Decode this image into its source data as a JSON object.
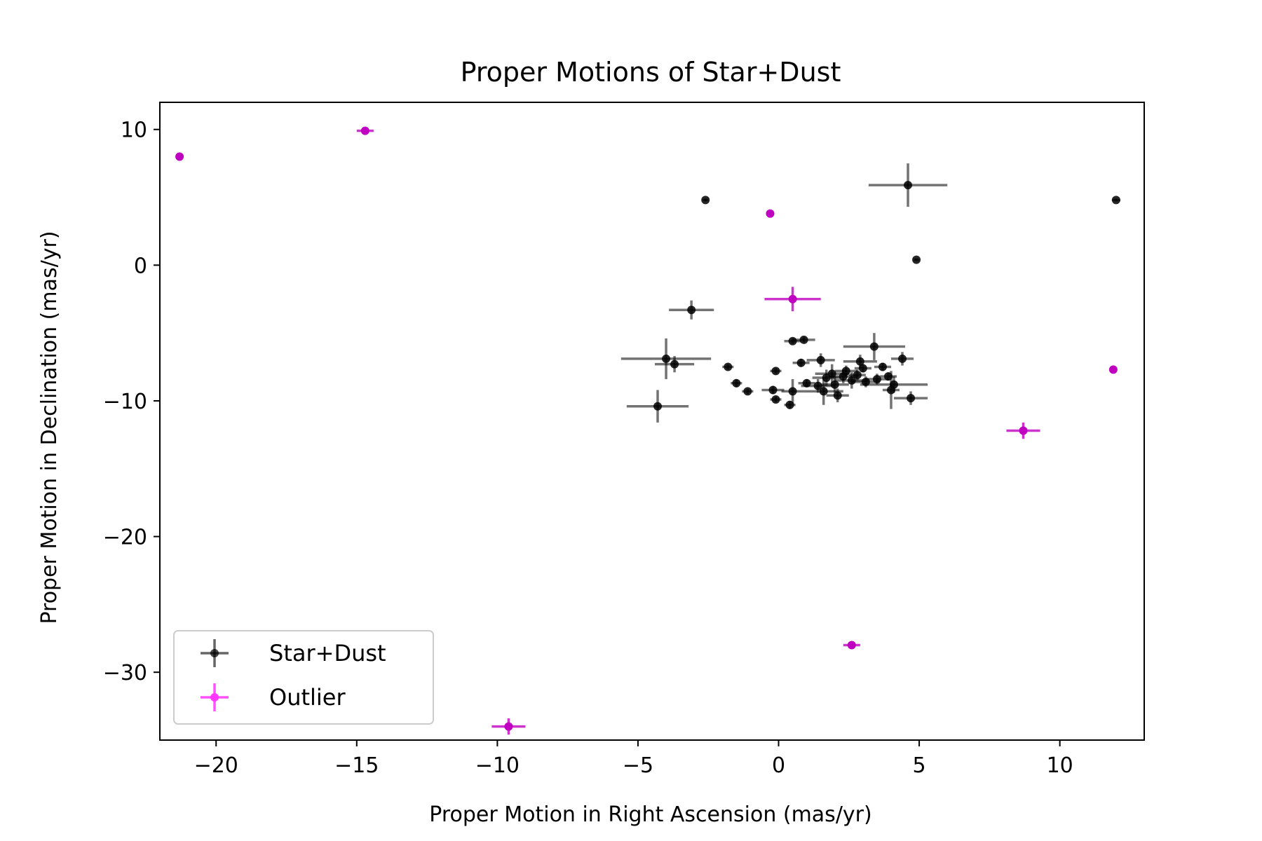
{
  "chart_data": {
    "type": "scatter",
    "title": "Proper Motions of Star+Dust",
    "xlabel": "Proper Motion in Right Ascension (mas/yr)",
    "ylabel": "Proper Motion in Declination (mas/yr)",
    "xlim": [
      -22,
      13
    ],
    "ylim": [
      -35,
      12
    ],
    "xticks": [
      -20,
      -15,
      -10,
      -5,
      0,
      5,
      10
    ],
    "yticks": [
      10,
      0,
      -10,
      -20,
      -30
    ],
    "xtick_labels": [
      "−20",
      "−15",
      "−10",
      "−5",
      "0",
      "5",
      "10"
    ],
    "ytick_labels": [
      "10",
      "0",
      "−10",
      "−20",
      "−30"
    ],
    "grid": false,
    "legend_position": "lower-left",
    "colors": {
      "Star+Dust": "#000000",
      "Outlier": "#c000c0",
      "Outlier-legend": "#ff33ff"
    },
    "series": [
      {
        "name": "Star+Dust",
        "points": [
          {
            "x": -2.6,
            "y": 4.8,
            "xerr": 0.1,
            "yerr": 0.1
          },
          {
            "x": 4.6,
            "y": 5.9,
            "xerr": 1.4,
            "yerr": 1.6
          },
          {
            "x": 12.0,
            "y": 4.8,
            "xerr": 0.15,
            "yerr": 0.1
          },
          {
            "x": 4.9,
            "y": 0.4,
            "xerr": 0.1,
            "yerr": 0.1
          },
          {
            "x": -3.1,
            "y": -3.3,
            "xerr": 0.8,
            "yerr": 0.7
          },
          {
            "x": -4.0,
            "y": -6.9,
            "xerr": 1.6,
            "yerr": 1.5
          },
          {
            "x": -3.7,
            "y": -7.3,
            "xerr": 0.7,
            "yerr": 0.6
          },
          {
            "x": -4.3,
            "y": -10.4,
            "xerr": 1.1,
            "yerr": 1.2
          },
          {
            "x": -1.8,
            "y": -7.5,
            "xerr": 0.2,
            "yerr": 0.2
          },
          {
            "x": -1.5,
            "y": -8.7,
            "xerr": 0.2,
            "yerr": 0.3
          },
          {
            "x": -1.1,
            "y": -9.3,
            "xerr": 0.2,
            "yerr": 0.2
          },
          {
            "x": -0.1,
            "y": -7.8,
            "xerr": 0.2,
            "yerr": 0.2
          },
          {
            "x": -0.2,
            "y": -9.2,
            "xerr": 0.4,
            "yerr": 0.3
          },
          {
            "x": -0.1,
            "y": -9.9,
            "xerr": 0.2,
            "yerr": 0.2
          },
          {
            "x": 0.4,
            "y": -10.3,
            "xerr": 0.2,
            "yerr": 0.3
          },
          {
            "x": 0.5,
            "y": -5.6,
            "xerr": 0.3,
            "yerr": 0.2
          },
          {
            "x": 0.9,
            "y": -5.5,
            "xerr": 0.4,
            "yerr": 0.2
          },
          {
            "x": 0.5,
            "y": -9.3,
            "xerr": 0.4,
            "yerr": 0.9
          },
          {
            "x": 0.8,
            "y": -7.2,
            "xerr": 0.3,
            "yerr": 0.3
          },
          {
            "x": 1.0,
            "y": -8.7,
            "xerr": 0.3,
            "yerr": 0.3
          },
          {
            "x": 1.5,
            "y": -7.0,
            "xerr": 0.5,
            "yerr": 0.5
          },
          {
            "x": 1.4,
            "y": -8.9,
            "xerr": 0.6,
            "yerr": 0.5
          },
          {
            "x": 1.7,
            "y": -8.3,
            "xerr": 0.5,
            "yerr": 0.6
          },
          {
            "x": 1.6,
            "y": -9.3,
            "xerr": 0.7,
            "yerr": 1.0
          },
          {
            "x": 1.9,
            "y": -8.0,
            "xerr": 0.6,
            "yerr": 0.7
          },
          {
            "x": 2.0,
            "y": -8.8,
            "xerr": 0.5,
            "yerr": 0.6
          },
          {
            "x": 2.1,
            "y": -9.6,
            "xerr": 0.4,
            "yerr": 0.5
          },
          {
            "x": 2.3,
            "y": -8.2,
            "xerr": 0.5,
            "yerr": 0.5
          },
          {
            "x": 2.4,
            "y": -7.8,
            "xerr": 0.4,
            "yerr": 0.4
          },
          {
            "x": 2.6,
            "y": -8.5,
            "xerr": 0.6,
            "yerr": 0.6
          },
          {
            "x": 2.8,
            "y": -8.1,
            "xerr": 0.3,
            "yerr": 0.4
          },
          {
            "x": 2.9,
            "y": -7.1,
            "xerr": 0.6,
            "yerr": 0.5
          },
          {
            "x": 3.0,
            "y": -7.6,
            "xerr": 0.3,
            "yerr": 0.3
          },
          {
            "x": 3.1,
            "y": -8.6,
            "xerr": 0.5,
            "yerr": 0.4
          },
          {
            "x": 3.4,
            "y": -6.0,
            "xerr": 1.1,
            "yerr": 1.0
          },
          {
            "x": 3.5,
            "y": -8.4,
            "xerr": 0.4,
            "yerr": 0.4
          },
          {
            "x": 3.7,
            "y": -7.5,
            "xerr": 0.3,
            "yerr": 0.3
          },
          {
            "x": 3.9,
            "y": -8.2,
            "xerr": 0.3,
            "yerr": 0.3
          },
          {
            "x": 4.1,
            "y": -8.8,
            "xerr": 1.2,
            "yerr": 0.6
          },
          {
            "x": 4.0,
            "y": -9.2,
            "xerr": 0.3,
            "yerr": 1.4
          },
          {
            "x": 4.4,
            "y": -6.9,
            "xerr": 0.4,
            "yerr": 0.5
          },
          {
            "x": 4.7,
            "y": -9.8,
            "xerr": 0.6,
            "yerr": 0.5
          }
        ]
      },
      {
        "name": "Outlier",
        "points": [
          {
            "x": -21.3,
            "y": 8.0,
            "xerr": 0.1,
            "yerr": 0.1
          },
          {
            "x": -14.7,
            "y": 9.9,
            "xerr": 0.3,
            "yerr": 0.2
          },
          {
            "x": -0.3,
            "y": 3.8,
            "xerr": 0.1,
            "yerr": 0.1
          },
          {
            "x": 0.5,
            "y": -2.5,
            "xerr": 1.0,
            "yerr": 0.9
          },
          {
            "x": 11.9,
            "y": -7.7,
            "xerr": 0.1,
            "yerr": 0.1
          },
          {
            "x": 8.7,
            "y": -12.2,
            "xerr": 0.6,
            "yerr": 0.6
          },
          {
            "x": 2.6,
            "y": -28.0,
            "xerr": 0.3,
            "yerr": 0.2
          },
          {
            "x": -9.6,
            "y": -34.0,
            "xerr": 0.6,
            "yerr": 0.6
          }
        ]
      }
    ]
  }
}
